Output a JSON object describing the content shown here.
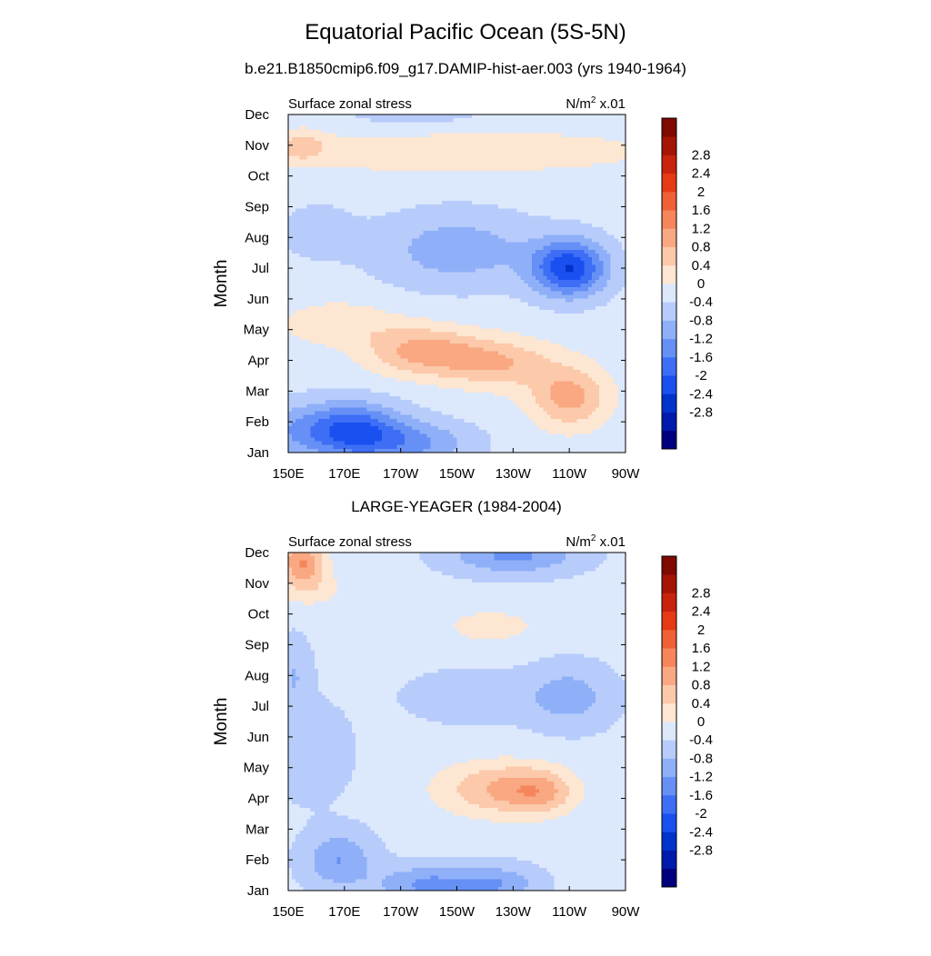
{
  "title": "Equatorial Pacific Ocean (5S-5N)",
  "colormap": [
    "#00007f",
    "#001bab",
    "#0033cc",
    "#1a50f0",
    "#3d6ef5",
    "#6690f5",
    "#8fb0f8",
    "#b7ccfb",
    "#dce8fc",
    "#fde6d2",
    "#fcc9aa",
    "#f9a882",
    "#f7855c",
    "#f05f36",
    "#e63a14",
    "#c8230c",
    "#a51506",
    "#7f0a00"
  ],
  "chart_data": [
    {
      "type": "heatmap",
      "title": "b.e21.B1850cmip6.f09_g17.DAMIP-hist-aer.003 (yrs 1940-1964)",
      "left_label": "Surface zonal stress",
      "units": "N/m",
      "units_exp": "2",
      "units_scale": " x.01",
      "ylabel": "Month",
      "x_tick_labels": [
        "150E",
        "170E",
        "170W",
        "150W",
        "130W",
        "110W",
        "90W"
      ],
      "y_tick_labels": [
        "Jan",
        "Feb",
        "Mar",
        "Apr",
        "May",
        "Jun",
        "Jul",
        "Aug",
        "Sep",
        "Oct",
        "Nov",
        "Dec"
      ],
      "xlim": [
        150,
        270
      ],
      "ylim": [
        1,
        12
      ],
      "colorbar_labels": [
        "-2.8",
        "-2.4",
        "-2",
        "-1.6",
        "-1.2",
        "-0.8",
        "-0.4",
        "0",
        "0.4",
        "0.8",
        "1.2",
        "1.6",
        "2",
        "2.4",
        "2.8"
      ],
      "levels": [
        -3.2,
        -2.8,
        -2.4,
        -2.0,
        -1.6,
        -1.2,
        -0.8,
        -0.4,
        0,
        0.4,
        0.8,
        1.2,
        1.6,
        2.0,
        2.4,
        2.8,
        3.2
      ],
      "baseline": 0.15,
      "features": [
        {
          "lon": 172,
          "month": 1.7,
          "amp": -1.9,
          "sx": 18,
          "sy": 0.9
        },
        {
          "lon": 150,
          "month": 1.7,
          "amp": -0.5,
          "sx": 12,
          "sy": 0.9
        },
        {
          "lon": 196,
          "month": 1.3,
          "amp": -0.9,
          "sx": 20,
          "sy": 0.7
        },
        {
          "lon": 198,
          "month": 4.3,
          "amp": 1.2,
          "sx": 20,
          "sy": 0.8
        },
        {
          "lon": 225,
          "month": 3.9,
          "amp": 1.0,
          "sx": 20,
          "sy": 0.8
        },
        {
          "lon": 250,
          "month": 2.8,
          "amp": 1.2,
          "sx": 14,
          "sy": 1.0
        },
        {
          "lon": 168,
          "month": 5.2,
          "amp": 0.6,
          "sx": 20,
          "sy": 0.7
        },
        {
          "lon": 250,
          "month": 7.0,
          "amp": -2.1,
          "sx": 13,
          "sy": 0.9
        },
        {
          "lon": 210,
          "month": 7.6,
          "amp": -0.8,
          "sx": 28,
          "sy": 1.2
        },
        {
          "lon": 160,
          "month": 8.2,
          "amp": -0.3,
          "sx": 14,
          "sy": 1.0
        },
        {
          "lon": 210,
          "month": 10.8,
          "amp": 0.6,
          "sx": 70,
          "sy": 0.7
        },
        {
          "lon": 155,
          "month": 11.0,
          "amp": 0.7,
          "sx": 8,
          "sy": 0.5
        },
        {
          "lon": 195,
          "month": 12.0,
          "amp": -0.3,
          "sx": 30,
          "sy": 0.6
        }
      ]
    },
    {
      "type": "heatmap",
      "title": "LARGE-YEAGER (1984-2004)",
      "left_label": "Surface zonal stress",
      "units": "N/m",
      "units_exp": "2",
      "units_scale": " x.01",
      "ylabel": "Month",
      "x_tick_labels": [
        "150E",
        "170E",
        "170W",
        "150W",
        "130W",
        "110W",
        "90W"
      ],
      "y_tick_labels": [
        "Jan",
        "Feb",
        "Mar",
        "Apr",
        "May",
        "Jun",
        "Jul",
        "Aug",
        "Sep",
        "Oct",
        "Nov",
        "Dec"
      ],
      "xlim": [
        150,
        270
      ],
      "ylim": [
        1,
        12
      ],
      "colorbar_labels": [
        "-2.8",
        "-2.4",
        "-2",
        "-1.6",
        "-1.2",
        "-0.8",
        "-0.4",
        "0",
        "0.4",
        "0.8",
        "1.2",
        "1.6",
        "2",
        "2.4",
        "2.8"
      ],
      "levels": [
        -3.2,
        -2.8,
        -2.4,
        -2.0,
        -1.6,
        -1.2,
        -0.8,
        -0.4,
        0,
        0.4,
        0.8,
        1.2,
        1.6,
        2.0,
        2.4,
        2.8,
        3.2
      ],
      "baseline": 0.1,
      "features": [
        {
          "lon": 155,
          "month": 11.7,
          "amp": 1.5,
          "sx": 8,
          "sy": 0.7
        },
        {
          "lon": 158,
          "month": 10.8,
          "amp": 0.5,
          "sx": 12,
          "sy": 0.6
        },
        {
          "lon": 230,
          "month": 11.9,
          "amp": -1.0,
          "sx": 22,
          "sy": 0.6
        },
        {
          "lon": 222,
          "month": 9.6,
          "amp": 0.5,
          "sx": 18,
          "sy": 0.6
        },
        {
          "lon": 225,
          "month": 4.3,
          "amp": 1.1,
          "sx": 22,
          "sy": 0.9
        },
        {
          "lon": 240,
          "month": 4.2,
          "amp": 0.8,
          "sx": 12,
          "sy": 0.7
        },
        {
          "lon": 168,
          "month": 2.0,
          "amp": -0.9,
          "sx": 12,
          "sy": 0.9
        },
        {
          "lon": 200,
          "month": 1.2,
          "amp": -1.0,
          "sx": 18,
          "sy": 0.6
        },
        {
          "lon": 225,
          "month": 1.2,
          "amp": -0.8,
          "sx": 14,
          "sy": 0.6
        },
        {
          "lon": 250,
          "month": 7.3,
          "amp": -0.7,
          "sx": 15,
          "sy": 1.0
        },
        {
          "lon": 215,
          "month": 7.3,
          "amp": -0.4,
          "sx": 22,
          "sy": 0.8
        },
        {
          "lon": 152,
          "month": 8.0,
          "amp": -0.5,
          "sx": 6,
          "sy": 1.2
        },
        {
          "lon": 158,
          "month": 5.5,
          "amp": -0.4,
          "sx": 14,
          "sy": 1.5
        }
      ]
    }
  ]
}
